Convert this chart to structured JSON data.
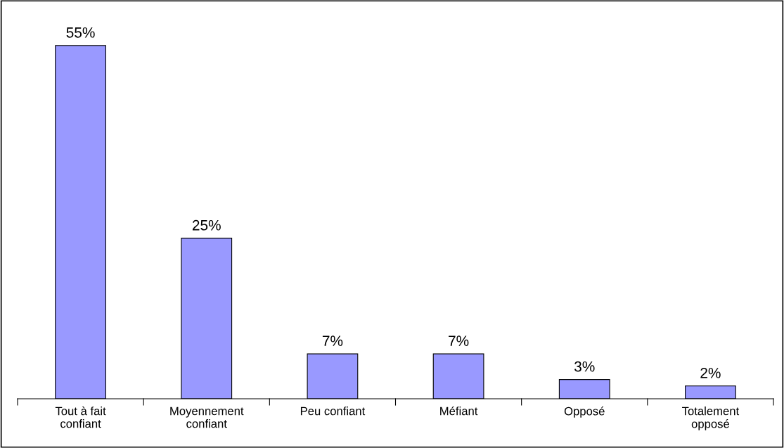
{
  "chart_data": {
    "type": "bar",
    "categories": [
      "Tout à fait\nconfiant",
      "Moyennement\nconfiant",
      "Peu confiant",
      "Méfiant",
      "Opposé",
      "Totalement\nopposé"
    ],
    "values": [
      55,
      25,
      7,
      7,
      3,
      2
    ],
    "value_labels": [
      "55%",
      "25%",
      "7%",
      "7%",
      "3%",
      "2%"
    ],
    "color": "#9999ff",
    "tick_labels": "x",
    "grid": false,
    "legend": false
  }
}
